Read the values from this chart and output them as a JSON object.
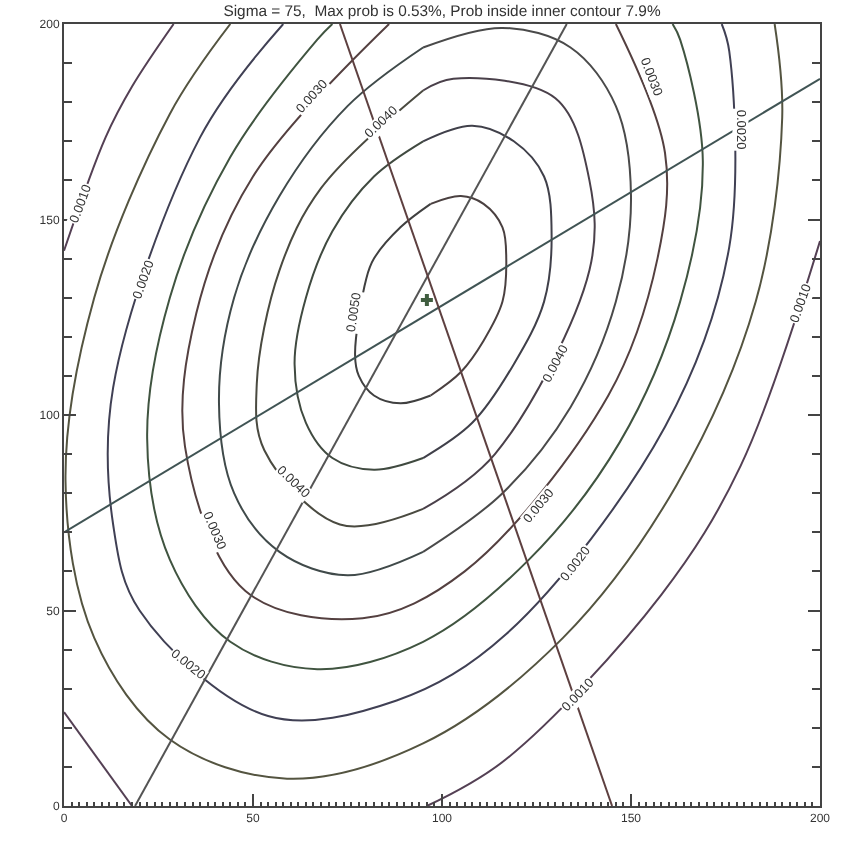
{
  "chart_data": {
    "type": "line",
    "title": "Sigma = 75,  Max prob is 0.53%, Prob inside inner contour 7.9%",
    "xlim": [
      0,
      200
    ],
    "ylim": [
      0,
      200
    ],
    "xticks": [
      0,
      {
        "value": 2,
        "label": null
      },
      {
        "value": 4,
        "label": null
      },
      {
        "value": 6,
        "label": null
      },
      {
        "value": 8,
        "label": null
      },
      {
        "value": 10,
        "label": null
      },
      {
        "value": 12,
        "label": null
      },
      {
        "value": 14,
        "label": null
      },
      {
        "value": 16,
        "label": null
      },
      {
        "value": 18,
        "label": null
      },
      {
        "value": 20,
        "label": null
      },
      {
        "value": 22,
        "label": null
      },
      {
        "value": 24,
        "label": null
      },
      {
        "value": 26,
        "label": null
      },
      {
        "value": 28,
        "label": null
      },
      {
        "value": 30,
        "label": null
      },
      {
        "value": 32,
        "label": null
      },
      {
        "value": 34,
        "label": null
      },
      {
        "value": 36,
        "label": null
      },
      {
        "value": 38,
        "label": null
      },
      {
        "value": 40,
        "label": null
      },
      {
        "value": 42,
        "label": null
      },
      {
        "value": 44,
        "label": null
      },
      {
        "value": 46,
        "label": null
      },
      {
        "value": 48,
        "label": null
      },
      50,
      {
        "value": 52,
        "label": null
      },
      {
        "value": 54,
        "label": null
      },
      {
        "value": 56,
        "label": null
      },
      {
        "value": 58,
        "label": null
      },
      {
        "value": 60,
        "label": null
      },
      {
        "value": 62,
        "label": null
      },
      {
        "value": 64,
        "label": null
      },
      {
        "value": 66,
        "label": null
      },
      {
        "value": 68,
        "label": null
      },
      {
        "value": 70,
        "label": null
      },
      {
        "value": 72,
        "label": null
      },
      {
        "value": 74,
        "label": null
      },
      {
        "value": 76,
        "label": null
      },
      {
        "value": 78,
        "label": null
      },
      {
        "value": 80,
        "label": null
      },
      {
        "value": 82,
        "label": null
      },
      {
        "value": 84,
        "label": null
      },
      {
        "value": 86,
        "label": null
      },
      {
        "value": 88,
        "label": null
      },
      {
        "value": 90,
        "label": null
      },
      {
        "value": 92,
        "label": null
      },
      {
        "value": 94,
        "label": null
      },
      {
        "value": 96,
        "label": null
      },
      {
        "value": 98,
        "label": null
      },
      100,
      {
        "value": 102,
        "label": null
      },
      {
        "value": 104,
        "label": null
      },
      {
        "value": 106,
        "label": null
      },
      {
        "value": 108,
        "label": null
      },
      {
        "value": 110,
        "label": null
      },
      {
        "value": 112,
        "label": null
      },
      {
        "value": 114,
        "label": null
      },
      {
        "value": 116,
        "label": null
      },
      {
        "value": 118,
        "label": null
      },
      {
        "value": 120,
        "label": null
      },
      {
        "value": 122,
        "label": null
      },
      {
        "value": 124,
        "label": null
      },
      {
        "value": 126,
        "label": null
      },
      {
        "value": 128,
        "label": null
      },
      {
        "value": 130,
        "label": null
      },
      {
        "value": 132,
        "label": null
      },
      {
        "value": 134,
        "label": null
      },
      {
        "value": 136,
        "label": null
      },
      {
        "value": 138,
        "label": null
      },
      {
        "value": 140,
        "label": null
      },
      {
        "value": 142,
        "label": null
      },
      {
        "value": 144,
        "label": null
      },
      {
        "value": 146,
        "label": null
      },
      {
        "value": 148,
        "label": null
      },
      150,
      {
        "value": 152,
        "label": null
      },
      {
        "value": 154,
        "label": null
      },
      {
        "value": 156,
        "label": null
      },
      {
        "value": 158,
        "label": null
      },
      {
        "value": 160,
        "label": null
      },
      {
        "value": 162,
        "label": null
      },
      {
        "value": 164,
        "label": null
      },
      {
        "value": 166,
        "label": null
      },
      {
        "value": 168,
        "label": null
      },
      {
        "value": 170,
        "label": null
      },
      {
        "value": 172,
        "label": null
      },
      {
        "value": 174,
        "label": null
      },
      {
        "value": 176,
        "label": null
      },
      {
        "value": 178,
        "label": null
      },
      {
        "value": 180,
        "label": null
      },
      {
        "value": 182,
        "label": null
      },
      {
        "value": 184,
        "label": null
      },
      {
        "value": 186,
        "label": null
      },
      {
        "value": 188,
        "label": null
      },
      {
        "value": 190,
        "label": null
      },
      {
        "value": 192,
        "label": null
      },
      {
        "value": 194,
        "label": null
      },
      {
        "value": 196,
        "label": null
      },
      {
        "value": 198,
        "label": null
      },
      200
    ],
    "yticks": [
      0,
      {
        "value": 10,
        "label": null
      },
      {
        "value": 20,
        "label": null
      },
      {
        "value": 30,
        "label": null
      },
      {
        "value": 40,
        "label": null
      },
      50,
      {
        "value": 60,
        "label": null
      },
      {
        "value": 70,
        "label": null
      },
      {
        "value": 80,
        "label": null
      },
      {
        "value": 90,
        "label": null
      },
      100,
      {
        "value": 110,
        "label": null
      },
      {
        "value": 120,
        "label": null
      },
      {
        "value": 130,
        "label": null
      },
      {
        "value": 140,
        "label": null
      },
      150,
      {
        "value": 160,
        "label": null
      },
      {
        "value": 170,
        "label": null
      },
      {
        "value": 180,
        "label": null
      },
      {
        "value": 190,
        "label": null
      },
      200
    ],
    "series": [
      {
        "color": "#404040",
        "x": [
          97,
          89,
          82,
          80,
          77,
          78,
          82,
          89,
          97
        ],
        "values": [
          154,
          148,
          140,
          135,
          115.5,
          110,
          105,
          103,
          105
        ]
      },
      {
        "color": "#4a4040",
        "x": [
          97,
          105,
          111,
          116,
          117,
          116,
          111,
          105,
          97
        ],
        "values": [
          105,
          111,
          119,
          129,
          140,
          148,
          154,
          156,
          154
        ]
      },
      {
        "color": "#404a40",
        "x": [
          95,
          82,
          71,
          64,
          61,
          64,
          71,
          82,
          95
        ],
        "values": [
          170,
          161,
          147,
          130,
          113,
          98,
          89,
          86,
          89
        ]
      },
      {
        "color": "#40404a",
        "x": [
          95,
          108,
          119,
          127,
          129,
          127,
          119,
          108,
          95
        ],
        "values": [
          89,
          98,
          113,
          129,
          146,
          161,
          170,
          174,
          170
        ]
      },
      {
        "color": "#4a4a40",
        "x": [
          95,
          68,
          57,
          51,
          53,
          73,
          95
        ],
        "values": [
          183,
          158,
          137,
          108,
          91,
          72,
          76
        ]
      },
      {
        "color": "#4a404a",
        "x": [
          95,
          114,
          139,
          139,
          130,
          103,
          95
        ],
        "values": [
          76,
          90,
          137,
          160,
          181,
          186,
          183
        ]
      },
      {
        "color": "#404a4a",
        "x": [
          95,
          75,
          57,
          45,
          41,
          45,
          57,
          75,
          95
        ],
        "values": [
          194,
          179,
          156,
          130,
          103,
          80,
          65,
          59,
          65
        ]
      },
      {
        "color": "#4a4a4a",
        "x": [
          95,
          116,
          134,
          146,
          150,
          146,
          134,
          116,
          95
        ],
        "values": [
          65,
          80,
          102,
          129,
          156,
          179,
          194,
          199,
          194
        ]
      },
      {
        "color": "#544040",
        "x": [
          86,
          50,
          35,
          32,
          48,
          79,
          106,
          144,
          157,
          159,
          146
        ],
        "values": [
          200,
          161,
          126,
          92,
          55,
          48,
          60,
          105,
          140,
          167,
          200
        ]
      },
      {
        "color": "#405440",
        "x": [
          71,
          67,
          44,
          28,
          22,
          28,
          44,
          67,
          95,
          123,
          147,
          163,
          169,
          163,
          161
        ],
        "values": [
          200,
          196,
          166,
          130,
          94,
          63,
          42,
          35,
          42,
          63,
          93,
          129,
          165,
          196,
          200
        ]
      },
      {
        "color": "#404054",
        "x": [
          58,
          36,
          13,
          13,
          20,
          54,
          88,
          117,
          159,
          176,
          176,
          174
        ],
        "values": [
          200,
          171,
          107,
          72,
          50,
          23,
          27,
          44,
          97,
          143,
          193,
          200
        ]
      },
      {
        "color": "#545440",
        "x": [
          44,
          28,
          8,
          0.4,
          8,
          28,
          59,
          95,
          132,
          162,
          183,
          190,
          188
        ],
        "values": [
          200,
          177,
          130,
          83,
          43,
          17,
          7,
          16,
          43,
          82,
          129,
          176,
          200
        ]
      },
      {
        "color": "#544054",
        "x": [
          29,
          18,
          11,
          0,
          null,
          0,
          18,
          null,
          96,
          117,
          158,
          179,
          200
        ],
        "values": [
          200,
          184,
          171,
          142,
          null,
          24,
          0,
          null,
          0,
          12,
          54,
          87,
          144.5
        ]
      },
      {
        "color": "#405454",
        "x": [
          0,
          200
        ],
        "values": [
          70,
          186
        ]
      },
      {
        "color": "#545454",
        "x": [
          18.8,
          133
        ],
        "values": [
          0,
          200
        ]
      },
      {
        "color": "#5e4040",
        "x": [
          73,
          145
        ],
        "values": [
          200,
          0
        ]
      },
      {
        "type": "scatter",
        "marker": "cross",
        "color": "#405e40",
        "x": [
          96
        ],
        "values": [
          129.4
        ]
      }
    ],
    "annotations": [
      {
        "text": "0.0010",
        "x": 4.9,
        "y": 154
      },
      {
        "text": "0.0020",
        "x": 21,
        "y": 134.5
      },
      {
        "text": "0.0030",
        "x": 65.7,
        "y": 181.5
      },
      {
        "text": "0.0040",
        "x": 84,
        "y": 174.7
      },
      {
        "text": "0.0050",
        "x": 77,
        "y": 126
      },
      {
        "text": "0.0030",
        "x": 155.3,
        "y": 186.7
      },
      {
        "text": "0.0020",
        "x": 178.8,
        "y": 173
      },
      {
        "text": "0.0010",
        "x": 195.3,
        "y": 128.5
      },
      {
        "text": "0.0040",
        "x": 130,
        "y": 113
      },
      {
        "text": "0.0040",
        "x": 60.5,
        "y": 82.4
      },
      {
        "text": "0.0030",
        "x": 39.6,
        "y": 70.4
      },
      {
        "text": "0.0020",
        "x": 32.7,
        "y": 36.2
      },
      {
        "text": "0.0030",
        "x": 125.7,
        "y": 76.4
      },
      {
        "text": "0.0020",
        "x": 135.3,
        "y": 61.8
      },
      {
        "text": "0.0010",
        "x": 136.2,
        "y": 28.5
      }
    ]
  }
}
